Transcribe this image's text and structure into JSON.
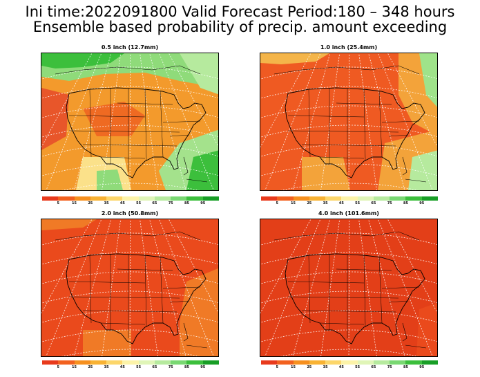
{
  "header": {
    "line1": "Ini time:2022091800  Valid Forecast Period:180 – 348 hours",
    "line2": "Ensemble based probability of precip. amount exceeding"
  },
  "colorbar": {
    "labels": [
      "5",
      "15",
      "25",
      "35",
      "45",
      "55",
      "65",
      "75",
      "85",
      "95"
    ],
    "colors": [
      "#e83a1c",
      "#f2611f",
      "#f6901f",
      "#f8b233",
      "#fcd66a",
      "#fcf3a8",
      "#e0f5b7",
      "#b6ea9e",
      "#79d872",
      "#3cbf3c",
      "#189e26"
    ]
  },
  "panels": [
    {
      "title": "0.5 inch (12.7mm)",
      "dominant": "mixed-green-orange"
    },
    {
      "title": "1.0 inch (25.4mm)",
      "dominant": "red-orange"
    },
    {
      "title": "2.0 inch (50.8mm)",
      "dominant": "red"
    },
    {
      "title": "4.0 inch (101.6mm)",
      "dominant": "deep-red"
    }
  ]
}
